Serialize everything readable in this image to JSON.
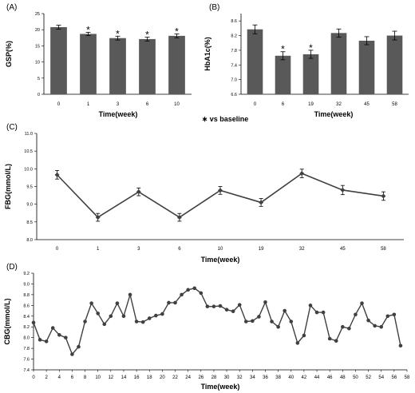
{
  "note": "∗ vs baseline",
  "chart_data": [
    {
      "panel": "(A)",
      "type": "bar",
      "xlabel": "Time(week)",
      "ylabel": "GSP(%)",
      "ylim": [
        0,
        25
      ],
      "yticks": [
        "0",
        "5",
        "10",
        "15",
        "20",
        "25"
      ],
      "categories": [
        "0",
        "1",
        "3",
        "6",
        "10"
      ],
      "values": [
        20.8,
        18.7,
        17.4,
        17.1,
        18.1
      ],
      "errors": [
        0.6,
        0.5,
        0.6,
        0.6,
        0.6
      ],
      "significant": [
        false,
        true,
        true,
        true,
        true
      ],
      "bar_color": "#595959",
      "grid": false
    },
    {
      "panel": "(B)",
      "type": "bar",
      "xlabel": "Time(week)",
      "ylabel": "HbA1c(%)",
      "ylim": [
        6.6,
        8.8
      ],
      "yticks": [
        "6.6",
        "7.0",
        "7.4",
        "7.8",
        "8.2",
        "8.6"
      ],
      "categories": [
        "0",
        "6",
        "19",
        "32",
        "45",
        "58"
      ],
      "values": [
        8.37,
        7.65,
        7.69,
        8.27,
        8.06,
        8.2
      ],
      "errors": [
        0.12,
        0.11,
        0.11,
        0.11,
        0.11,
        0.12
      ],
      "significant": [
        false,
        true,
        true,
        false,
        false,
        false
      ],
      "bar_color": "#595959",
      "grid": false
    },
    {
      "panel": "(C)",
      "type": "line",
      "xlabel": "Time(week)",
      "ylabel": "FBG(mmol/L)",
      "ylim": [
        8.0,
        11.0
      ],
      "yticks": [
        "8.0",
        "8.5",
        "9.0",
        "9.5",
        "10.0",
        "10.5",
        "11.0"
      ],
      "categories": [
        "0",
        "1",
        "3",
        "6",
        "10",
        "19",
        "32",
        "45",
        "58"
      ],
      "values": [
        9.83,
        8.63,
        9.35,
        8.63,
        9.39,
        9.05,
        9.87,
        9.4,
        9.23
      ],
      "errors": [
        0.12,
        0.11,
        0.11,
        0.11,
        0.11,
        0.11,
        0.12,
        0.13,
        0.12
      ],
      "color": "#404040",
      "grid": false
    },
    {
      "panel": "(D)",
      "type": "line",
      "xlabel": "Time(week)",
      "ylabel": "CBG(mmol/L)",
      "ylim": [
        7.4,
        9.2
      ],
      "yticks": [
        "7.4",
        "7.6",
        "7.8",
        "8.0",
        "8.2",
        "8.4",
        "8.6",
        "8.8",
        "9.0",
        "9.2"
      ],
      "xticks": [
        "0",
        "2",
        "4",
        "6",
        "8",
        "10",
        "12",
        "14",
        "16",
        "18",
        "20",
        "22",
        "24",
        "26",
        "28",
        "30",
        "32",
        "34",
        "36",
        "38",
        "40",
        "42",
        "44",
        "46",
        "48",
        "50",
        "52",
        "54",
        "56",
        "58"
      ],
      "x": [
        0,
        1,
        2,
        3,
        4,
        5,
        6,
        7,
        8,
        9,
        10,
        11,
        12,
        13,
        14,
        15,
        16,
        17,
        18,
        19,
        20,
        21,
        22,
        23,
        24,
        25,
        26,
        27,
        28,
        29,
        30,
        31,
        32,
        33,
        34,
        35,
        36,
        37,
        38,
        39,
        40,
        41,
        42,
        43,
        44,
        45,
        46,
        47,
        48,
        49,
        50,
        51,
        52,
        53,
        54,
        55,
        56,
        57
      ],
      "values": [
        8.28,
        7.96,
        7.93,
        8.18,
        8.05,
        8.0,
        7.69,
        7.83,
        8.3,
        8.64,
        8.45,
        8.25,
        8.4,
        8.64,
        8.4,
        8.8,
        8.3,
        8.29,
        8.36,
        8.41,
        8.44,
        8.65,
        8.65,
        8.8,
        8.89,
        8.92,
        8.83,
        8.58,
        8.58,
        8.59,
        8.52,
        8.49,
        8.61,
        8.3,
        8.31,
        8.39,
        8.66,
        8.3,
        8.2,
        8.5,
        8.3,
        7.9,
        8.04,
        8.6,
        8.47,
        8.47,
        7.98,
        7.94,
        8.2,
        8.17,
        8.43,
        8.64,
        8.32,
        8.22,
        8.2,
        8.4,
        8.43,
        7.85
      ],
      "color": "#404040",
      "grid": false
    }
  ]
}
